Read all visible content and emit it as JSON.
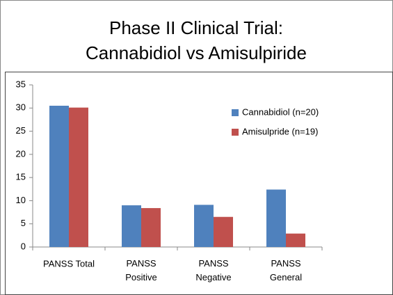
{
  "chart_data": {
    "type": "bar",
    "title": "Phase II Clinical Trial: Cannabidiol vs Amisulpiride",
    "categories": [
      "PANSS Total",
      "PANSS Positive",
      "PANSS Negative",
      "PANSS General"
    ],
    "series": [
      {
        "name": "Cannabidiol (n=20)",
        "color": "#4f81bd",
        "values": [
          30.5,
          9,
          9.1,
          12.4
        ]
      },
      {
        "name": "Amisulpride (n=19)",
        "color": "#c0504d",
        "values": [
          30.1,
          8.4,
          6.5,
          2.9
        ]
      }
    ],
    "ylim": [
      0,
      35
    ],
    "yticks": [
      0,
      5,
      10,
      15,
      20,
      25,
      30,
      35
    ],
    "legend": "right"
  }
}
